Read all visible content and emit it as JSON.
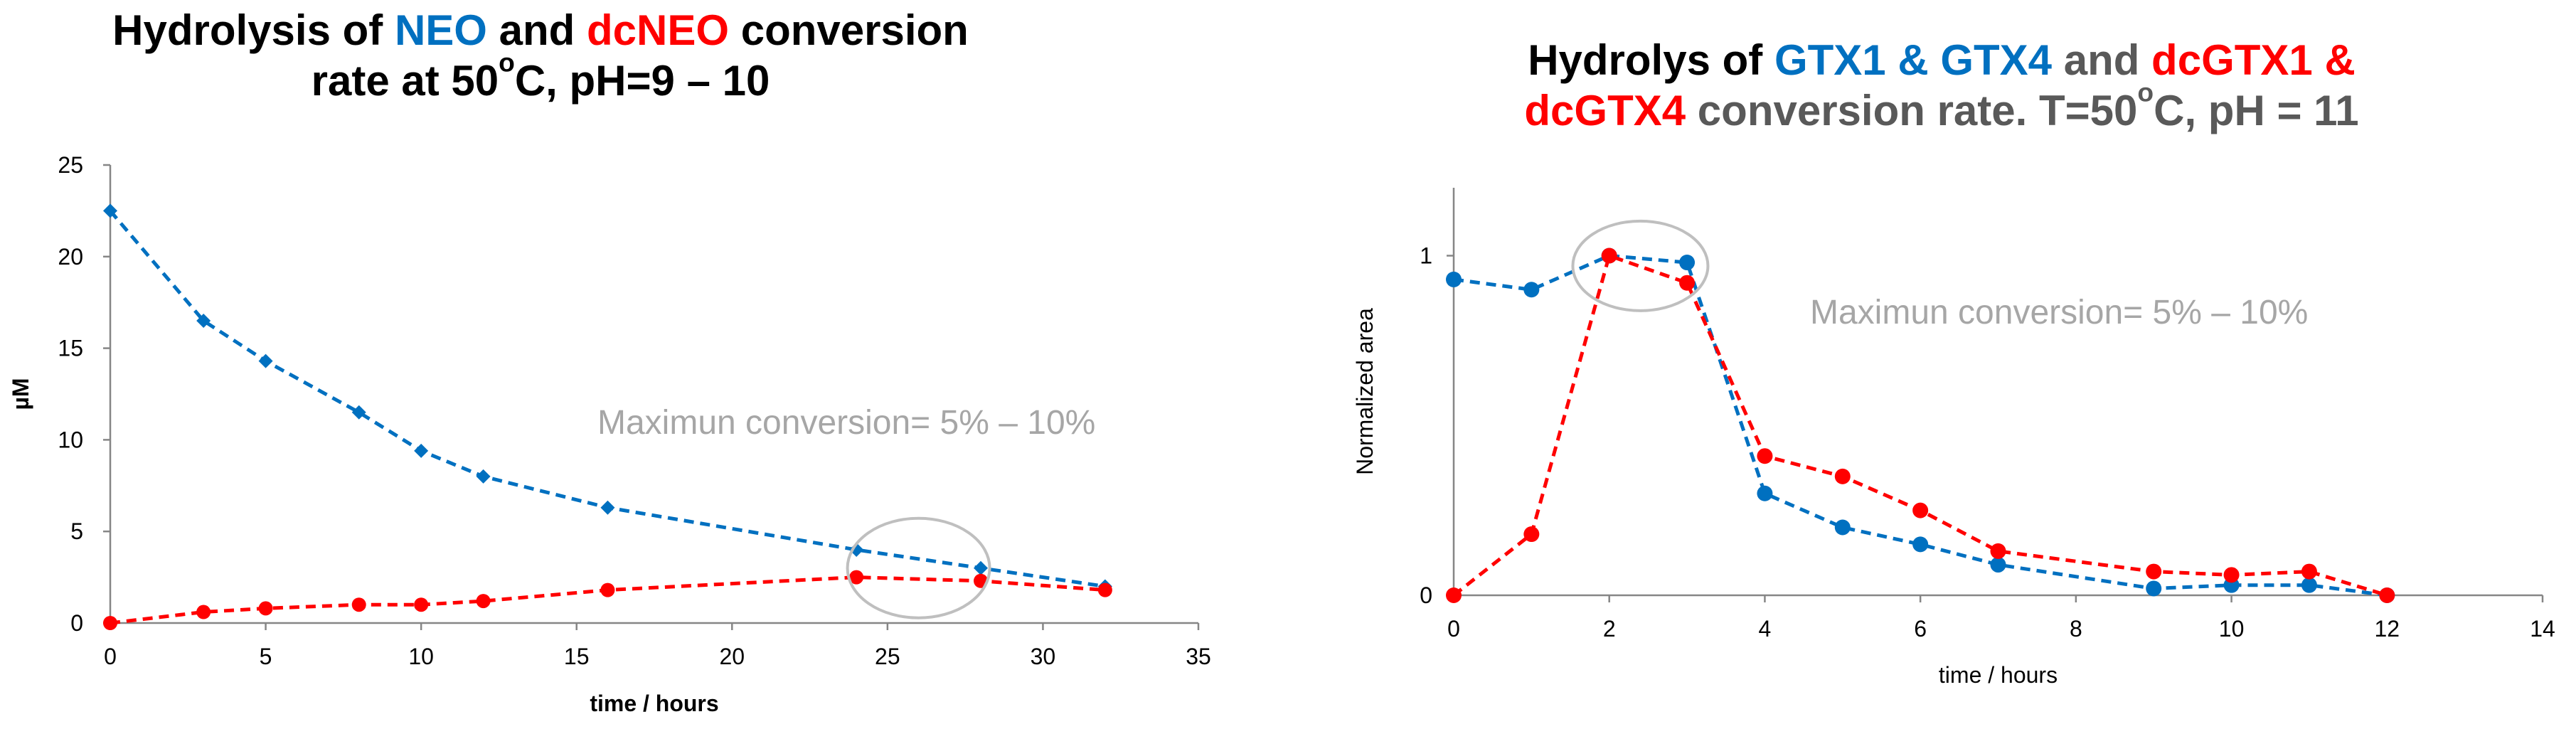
{
  "chart_data": [
    {
      "type": "line",
      "title_parts": [
        "Hydrolysis of ",
        "NEO",
        " and ",
        "dcNEO",
        " conversion rate at 50",
        "o",
        "C, pH=9 – 10"
      ],
      "xlabel": "time / hours",
      "ylabel": "µM",
      "xlim": [
        0,
        35
      ],
      "ylim": [
        0,
        25
      ],
      "xticks": [
        0,
        5,
        10,
        15,
        20,
        25,
        30,
        35
      ],
      "yticks": [
        0,
        5,
        10,
        15,
        20,
        25
      ],
      "annotation": "Maximun conversion= 5% – 10%",
      "highlight_circle": {
        "x": 26,
        "y": 3
      },
      "series": [
        {
          "name": "NEO",
          "color": "#0070C0",
          "marker": "diamond",
          "x": [
            0,
            3,
            5,
            8,
            10,
            12,
            16,
            24,
            28,
            32
          ],
          "y": [
            22.5,
            16.5,
            14.3,
            11.5,
            9.4,
            8.0,
            6.3,
            4.0,
            3.0,
            2.0
          ]
        },
        {
          "name": "dcNEO",
          "color": "#FF0000",
          "marker": "circle",
          "x": [
            0,
            3,
            5,
            8,
            10,
            12,
            16,
            24,
            28,
            32
          ],
          "y": [
            0,
            0.6,
            0.8,
            1.0,
            1.0,
            1.2,
            1.8,
            2.5,
            2.3,
            1.8
          ]
        }
      ]
    },
    {
      "type": "line",
      "title_parts": [
        "Hydrolys of ",
        "GTX1 & GTX4",
        " and ",
        "dcGTX1 &",
        "dcGTX4",
        " conversion rate. T=50",
        "o",
        "C, pH = 11"
      ],
      "xlabel": "time / hours",
      "ylabel": "Normalized area",
      "xlim": [
        0,
        14
      ],
      "ylim": [
        0,
        1.2
      ],
      "xticks": [
        0,
        2,
        4,
        6,
        8,
        10,
        12,
        14
      ],
      "yticks": [
        0,
        1
      ],
      "annotation": "Maximun conversion= 5% – 10%",
      "highlight_circle": {
        "x": 2.4,
        "y": 0.97
      },
      "series": [
        {
          "name": "GTX1 & GTX4",
          "color": "#0070C0",
          "marker": "circle",
          "x": [
            0,
            1,
            2,
            3,
            4,
            5,
            6,
            7,
            9,
            10,
            11,
            12
          ],
          "y": [
            0.93,
            0.9,
            1.0,
            0.98,
            0.3,
            0.2,
            0.15,
            0.09,
            0.02,
            0.03,
            0.03,
            0.0
          ]
        },
        {
          "name": "dcGTX1 & dcGTX4",
          "color": "#FF0000",
          "marker": "circle",
          "x": [
            0,
            1,
            2,
            3,
            4,
            5,
            6,
            7,
            9,
            10,
            11,
            12
          ],
          "y": [
            0.0,
            0.18,
            1.0,
            0.92,
            0.41,
            0.35,
            0.25,
            0.13,
            0.07,
            0.06,
            0.07,
            0.0
          ]
        }
      ]
    }
  ]
}
